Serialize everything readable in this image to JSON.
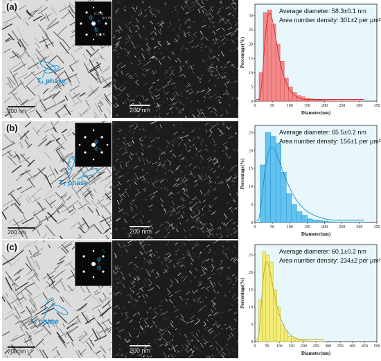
{
  "figure": {
    "panels": [
      {
        "label": "(a)",
        "phase_label": "T₁ phase",
        "bf_scale": "200 nm",
        "df_scale": "200 nm",
        "average_diameter": "Average diameter:  58.3±0.1 nm",
        "area_density": "Area number density:  301±2 per µm²",
        "saed_labels": [
          "(1 1 1)",
          "(2 2 0)",
          "(1 1 1)",
          "T₁"
        ],
        "color": "#f4898a",
        "edge": "#c8474b",
        "line": "#d42b2f",
        "bg": "#e8f7fb"
      },
      {
        "label": "(b)",
        "phase_label": "T₁ phase",
        "bf_scale": "200 nm",
        "df_scale": "200 nm",
        "average_diameter": "Average diameter:  65.5±0.2 nm",
        "area_density": "Area number density:  156±1 per µm²",
        "saed_labels": [
          "T₁"
        ],
        "color": "#62c3f0",
        "edge": "#2a8fc6",
        "line": "#168acc",
        "bg": "#e8f7fb"
      },
      {
        "label": "(c)",
        "phase_label": "T₁ phase",
        "bf_scale": "200 nm",
        "df_scale": "200 nm",
        "average_diameter": "Average diameter:  60.1±0.2 nm",
        "area_density": "Area number density:  234±2 per µm²",
        "saed_labels": [
          "T₁"
        ],
        "color": "#f3ec76",
        "edge": "#c0b53a",
        "line": "#b8a82a",
        "bg": "#e8f7fb"
      }
    ]
  },
  "chart_data": [
    {
      "type": "bar",
      "xlabel": "Diameter(nm)",
      "ylabel": "Percentage(%)",
      "x_ticks": [
        0,
        50,
        100,
        150,
        200,
        250,
        300,
        350
      ],
      "y_ticks": [
        0,
        5,
        10,
        15,
        20,
        25,
        30
      ],
      "xlim": [
        0,
        350
      ],
      "ylim": [
        0,
        34
      ],
      "bin_width": 12,
      "bin_starts": [
        12,
        24,
        36,
        48,
        60,
        72,
        84,
        96,
        108,
        120,
        132,
        144,
        156,
        168,
        180,
        192,
        204,
        216,
        228,
        240,
        252,
        264,
        276,
        288,
        300
      ],
      "values": [
        10,
        31,
        32,
        27,
        20,
        14,
        8,
        5,
        3,
        2,
        1.5,
        1,
        0.8,
        0.5,
        0.4,
        0.3,
        0.2,
        0.2,
        0.1,
        0.1,
        0.1,
        0.1,
        0.1,
        0.1,
        0.1
      ],
      "fit_peak": 42,
      "fit_height": 31,
      "fit_width": 18
    },
    {
      "type": "bar",
      "xlabel": "Diameter(nm)",
      "ylabel": "Percentage(%)",
      "x_ticks": [
        0,
        50,
        100,
        150,
        200,
        250,
        300,
        350
      ],
      "y_ticks": [
        0,
        5,
        10,
        15,
        20,
        25
      ],
      "xlim": [
        0,
        350
      ],
      "ylim": [
        0,
        27
      ],
      "bin_width": 15,
      "bin_starts": [
        15,
        30,
        45,
        60,
        75,
        90,
        105,
        120,
        135,
        150,
        165,
        180,
        195,
        210,
        225,
        240,
        255,
        270,
        285,
        300
      ],
      "values": [
        16,
        25,
        24,
        22,
        14,
        8,
        5,
        3,
        2,
        1,
        0.7,
        0.5,
        0.3,
        0.2,
        0.1,
        0.1,
        0.1,
        0.1,
        0.1,
        0.1
      ],
      "fit_peak": 48,
      "fit_height": 21,
      "fit_width": 28
    },
    {
      "type": "bar",
      "xlabel": "Diameter(nm)",
      "ylabel": "Percentage(%)",
      "x_ticks": [
        0,
        50,
        100,
        150,
        200,
        250,
        300,
        350,
        400,
        450,
        500
      ],
      "y_ticks": [
        0,
        5,
        10,
        15,
        20,
        25
      ],
      "xlim": [
        0,
        500
      ],
      "ylim": [
        0,
        28
      ],
      "bin_width": 15,
      "bin_starts": [
        15,
        30,
        45,
        60,
        75,
        90,
        105,
        120,
        135,
        150,
        165,
        180,
        195,
        210,
        225,
        240,
        255,
        270
      ],
      "values": [
        12,
        26,
        25,
        23,
        15,
        10,
        5,
        3,
        1.5,
        1,
        0.5,
        0.4,
        0.3,
        0.2,
        0.1,
        0.1,
        0.1,
        0.1
      ],
      "fit_peak": 48,
      "fit_height": 23,
      "fit_width": 24
    }
  ]
}
